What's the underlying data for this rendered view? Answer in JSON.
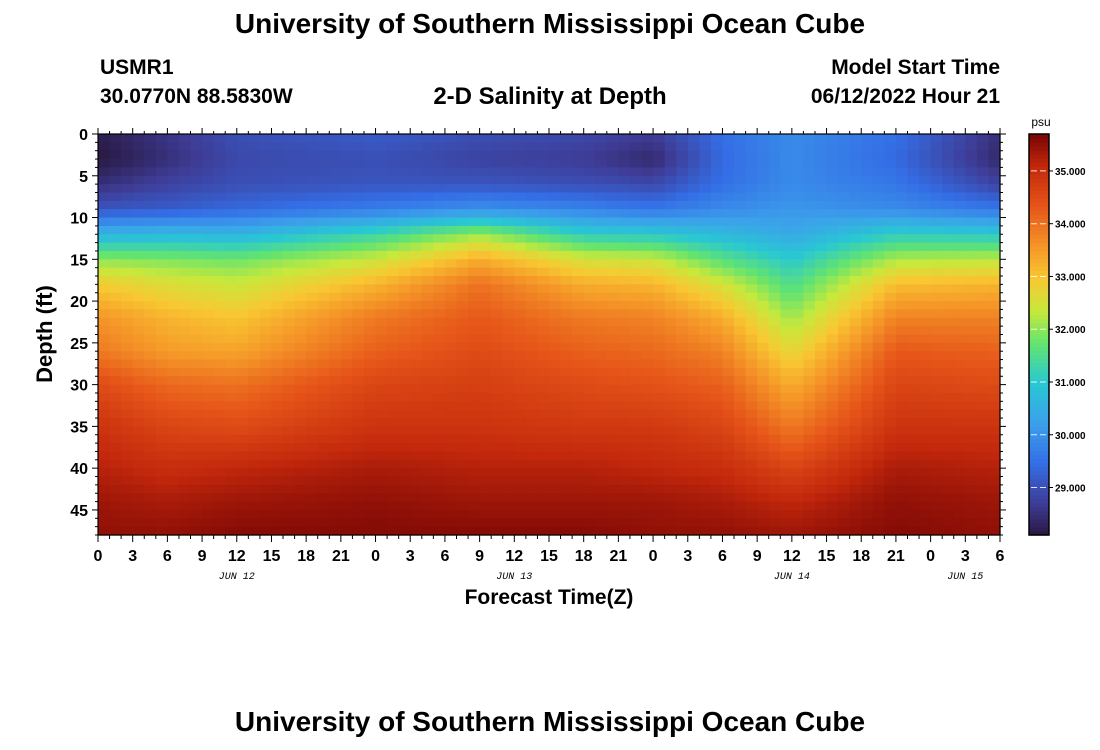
{
  "header": {
    "title": "University of Southern Mississippi Ocean Cube",
    "station_id": "USMR1",
    "coordinates": "30.0770N  88.5830W",
    "subtitle": "2-D Salinity at Depth",
    "model_start_label": "Model Start Time",
    "model_start_value": "06/12/2022 Hour 21"
  },
  "footer": {
    "title": "University of Southern Mississippi Ocean Cube"
  },
  "chart_data": {
    "type": "heatmap",
    "title": "2-D Salinity at Depth",
    "xlabel": "Forecast Time(Z)",
    "ylabel": "Depth (ft)",
    "x_units": "hours since 2022-06-12 00Z",
    "xlim": [
      0,
      78
    ],
    "ylim": [
      48,
      0
    ],
    "x_ticks": [
      0,
      3,
      6,
      9,
      12,
      15,
      18,
      21,
      24,
      27,
      30,
      33,
      36,
      39,
      42,
      45,
      48,
      51,
      54,
      57,
      60,
      63,
      66,
      69,
      72,
      75,
      78
    ],
    "x_tick_labels": [
      "0",
      "3",
      "6",
      "9",
      "12",
      "15",
      "18",
      "21",
      "0",
      "3",
      "6",
      "9",
      "12",
      "15",
      "18",
      "21",
      "0",
      "3",
      "6",
      "9",
      "12",
      "15",
      "18",
      "21",
      "0",
      "3",
      "6"
    ],
    "date_labels": [
      {
        "x": 12,
        "label": "JUN 12"
      },
      {
        "x": 36,
        "label": "JUN 13"
      },
      {
        "x": 60,
        "label": "JUN 14"
      },
      {
        "x": 75,
        "label": "JUN 15"
      }
    ],
    "y_ticks": [
      0,
      5,
      10,
      15,
      20,
      25,
      30,
      35,
      40,
      45
    ],
    "colorbar": {
      "unit": "psu",
      "min": 28.1,
      "max": 35.7,
      "ticks": [
        29.0,
        30.0,
        31.0,
        32.0,
        33.0,
        34.0,
        35.0
      ],
      "tick_labels": [
        "29.000",
        "30.000",
        "31.000",
        "32.000",
        "33.000",
        "34.000",
        "35.000"
      ]
    },
    "depth_profiles": [
      {
        "time": 0,
        "depths": [
          0,
          3,
          6,
          9,
          12,
          15,
          18,
          22,
          26,
          30,
          35,
          40,
          44,
          48
        ],
        "salinity": [
          28.2,
          28.1,
          28.5,
          29.1,
          30.6,
          32.0,
          32.9,
          33.6,
          33.9,
          34.5,
          34.9,
          35.2,
          35.4,
          35.5
        ]
      },
      {
        "time": 6,
        "depths": [
          0,
          3,
          6,
          9,
          12,
          15,
          18,
          22,
          26,
          30,
          35,
          40,
          44,
          48
        ],
        "salinity": [
          28.6,
          28.5,
          28.8,
          29.2,
          30.7,
          31.9,
          32.6,
          33.2,
          33.5,
          34.1,
          34.6,
          35.0,
          35.3,
          35.5
        ]
      },
      {
        "time": 12,
        "depths": [
          0,
          3,
          6,
          9,
          12,
          15,
          18,
          22,
          26,
          30,
          35,
          40,
          44,
          48
        ],
        "salinity": [
          29.0,
          28.9,
          29.0,
          29.4,
          30.6,
          31.8,
          32.4,
          33.0,
          33.4,
          34.0,
          34.5,
          35.1,
          35.4,
          35.6
        ]
      },
      {
        "time": 24,
        "depths": [
          0,
          3,
          6,
          9,
          12,
          15,
          18,
          22,
          26,
          30,
          35,
          40,
          44,
          48
        ],
        "salinity": [
          29.2,
          29.0,
          29.1,
          29.7,
          31.3,
          32.4,
          33.2,
          33.9,
          34.2,
          34.6,
          34.9,
          35.3,
          35.5,
          35.6
        ]
      },
      {
        "time": 33,
        "depths": [
          0,
          3,
          6,
          9,
          12,
          15,
          18,
          22,
          26,
          30,
          35,
          40,
          44,
          48
        ],
        "salinity": [
          29.0,
          28.8,
          29.1,
          30.0,
          32.1,
          33.3,
          34.0,
          34.3,
          34.5,
          34.7,
          34.9,
          35.2,
          35.4,
          35.6
        ]
      },
      {
        "time": 42,
        "depths": [
          0,
          3,
          6,
          9,
          12,
          15,
          18,
          22,
          26,
          30,
          35,
          40,
          44,
          48
        ],
        "salinity": [
          28.9,
          28.7,
          29.0,
          29.8,
          31.1,
          32.5,
          33.3,
          33.9,
          34.2,
          34.5,
          34.8,
          35.2,
          35.4,
          35.6
        ]
      },
      {
        "time": 48,
        "depths": [
          0,
          3,
          6,
          9,
          12,
          15,
          18,
          22,
          26,
          30,
          35,
          40,
          44,
          48
        ],
        "salinity": [
          28.7,
          28.4,
          28.9,
          29.6,
          31.0,
          32.4,
          33.2,
          33.8,
          34.1,
          34.4,
          34.8,
          35.1,
          35.4,
          35.5
        ]
      },
      {
        "time": 54,
        "depths": [
          0,
          3,
          6,
          9,
          12,
          15,
          18,
          22,
          26,
          30,
          35,
          40,
          44,
          48
        ],
        "salinity": [
          29.5,
          29.4,
          29.5,
          29.9,
          30.7,
          31.6,
          32.5,
          33.3,
          33.8,
          34.2,
          34.6,
          35.0,
          35.3,
          35.5
        ]
      },
      {
        "time": 60,
        "depths": [
          0,
          3,
          6,
          9,
          12,
          15,
          18,
          22,
          26,
          30,
          35,
          40,
          44,
          48
        ],
        "salinity": [
          29.9,
          29.9,
          29.9,
          30.1,
          30.4,
          31.0,
          31.5,
          32.1,
          32.7,
          33.3,
          33.9,
          34.6,
          35.1,
          35.4
        ]
      },
      {
        "time": 69,
        "depths": [
          0,
          3,
          6,
          9,
          12,
          15,
          18,
          22,
          26,
          30,
          35,
          40,
          44,
          48
        ],
        "salinity": [
          29.5,
          29.4,
          29.6,
          29.9,
          31.1,
          32.2,
          33.1,
          33.8,
          34.3,
          34.6,
          34.9,
          35.3,
          35.5,
          35.6
        ]
      },
      {
        "time": 78,
        "depths": [
          0,
          3,
          6,
          9,
          12,
          15,
          18,
          22,
          26,
          30,
          35,
          40,
          44,
          48
        ],
        "salinity": [
          28.5,
          28.4,
          28.8,
          29.6,
          31.0,
          32.3,
          33.2,
          33.8,
          34.2,
          34.5,
          34.9,
          35.2,
          35.4,
          35.5
        ]
      }
    ]
  }
}
